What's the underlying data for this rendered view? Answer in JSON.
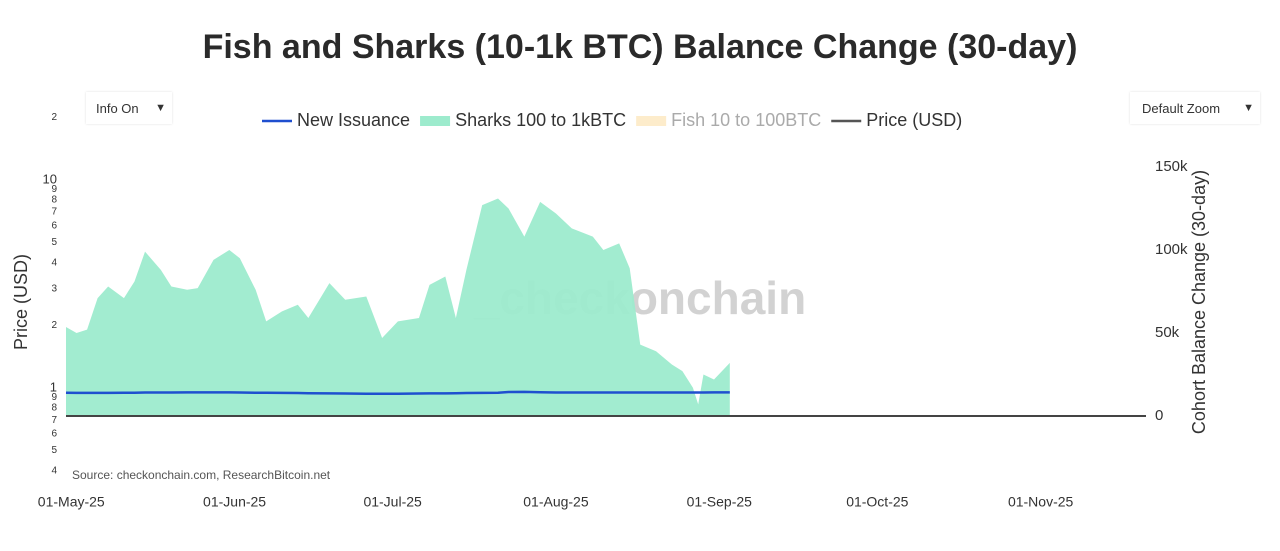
{
  "controls": {
    "info": "Info On",
    "zoom": "Default Zoom"
  },
  "chart_data": {
    "type": "area",
    "title": "Fish and Sharks (10-1k BTC) Balance Change (30-day)",
    "ylabel": "Price (USD)",
    "y2label": "Cohort Balance Change (30-day)",
    "source": "Source: checkonchain.com, ResearchBitcoin.net",
    "watermark": "_checkonchain",
    "log_y": true,
    "x": [
      "2025-04-30",
      "2025-05-02",
      "2025-05-04",
      "2025-05-06",
      "2025-05-08",
      "2025-05-11",
      "2025-05-13",
      "2025-05-15",
      "2025-05-18",
      "2025-05-20",
      "2025-05-23",
      "2025-05-25",
      "2025-05-28",
      "2025-05-31",
      "2025-06-02",
      "2025-06-05",
      "2025-06-07",
      "2025-06-10",
      "2025-06-13",
      "2025-06-15",
      "2025-06-19",
      "2025-06-22",
      "2025-06-26",
      "2025-06-29",
      "2025-07-02",
      "2025-07-06",
      "2025-07-08",
      "2025-07-11",
      "2025-07-13",
      "2025-07-15",
      "2025-07-18",
      "2025-07-21",
      "2025-07-23",
      "2025-07-26",
      "2025-07-29",
      "2025-08-01",
      "2025-08-04",
      "2025-08-08",
      "2025-08-10",
      "2025-08-13",
      "2025-08-15",
      "2025-08-17",
      "2025-08-20",
      "2025-08-23",
      "2025-08-25",
      "2025-08-27",
      "2025-08-28",
      "2025-08-29",
      "2025-08-31",
      "2025-09-03"
    ],
    "series": [
      {
        "name": "New Issuance",
        "color": "#1f4fcf",
        "axis": "y2",
        "style": "line",
        "values": [
          14000,
          13900,
          13900,
          13900,
          13900,
          14000,
          14000,
          14100,
          14100,
          14100,
          14200,
          14200,
          14200,
          14200,
          14100,
          14000,
          14000,
          13900,
          13800,
          13700,
          13600,
          13500,
          13400,
          13400,
          13400,
          13500,
          13600,
          13600,
          13700,
          13800,
          13900,
          14000,
          14400,
          14500,
          14300,
          14100,
          14100,
          14100,
          14100,
          14100,
          14100,
          14100,
          14100,
          14100,
          14100,
          14100,
          14100,
          14100,
          14200,
          14200
        ]
      },
      {
        "name": "Sharks 100 to 1kBTC",
        "color": "#9debcd",
        "axis": "y2",
        "style": "area",
        "values": [
          53600,
          50000,
          52000,
          71000,
          78000,
          71000,
          81000,
          99000,
          88000,
          78000,
          76000,
          77000,
          94000,
          100000,
          95000,
          76000,
          57000,
          63000,
          67000,
          59000,
          80000,
          70000,
          72000,
          47000,
          57000,
          59000,
          79000,
          84000,
          59000,
          88000,
          127000,
          131000,
          125000,
          108000,
          129000,
          122000,
          113000,
          108000,
          100000,
          104000,
          89000,
          43000,
          39000,
          31000,
          27000,
          17000,
          7000,
          25000,
          22000,
          32000
        ]
      },
      {
        "name": "Fish 10 to 100BTC",
        "color": "#fdeccb",
        "axis": "y2",
        "style": "area",
        "visible": false,
        "values": [
          null,
          null,
          null,
          null,
          null,
          null,
          null,
          null,
          null,
          null,
          null,
          null,
          null,
          null,
          null,
          null,
          null,
          null,
          null,
          null,
          null,
          null,
          null,
          null,
          null,
          null,
          null,
          null,
          null,
          null,
          null,
          null,
          null,
          null,
          null,
          null,
          null,
          null,
          null,
          null,
          null,
          null,
          null,
          null,
          null,
          null,
          null,
          null,
          null,
          null
        ]
      },
      {
        "name": "Price (USD)",
        "color": "#555555",
        "axis": "y",
        "style": "line",
        "values": [
          null,
          null,
          null,
          null,
          null,
          null,
          null,
          null,
          null,
          null,
          null,
          null,
          null,
          null,
          null,
          null,
          null,
          null,
          null,
          null,
          null,
          null,
          null,
          null,
          null,
          null,
          null,
          null,
          null,
          null,
          null,
          null,
          null,
          null,
          null,
          null,
          null,
          null,
          null,
          null,
          null,
          null,
          null,
          null,
          null,
          null,
          null,
          null,
          null,
          null
        ]
      }
    ],
    "xlim": [
      "2025-04-30",
      "2025-11-21"
    ],
    "xticks": [
      {
        "value": "2025-05-01",
        "label": "01-May-25"
      },
      {
        "value": "2025-06-01",
        "label": "01-Jun-25"
      },
      {
        "value": "2025-07-01",
        "label": "01-Jul-25"
      },
      {
        "value": "2025-08-01",
        "label": "01-Aug-25"
      },
      {
        "value": "2025-09-01",
        "label": "01-Sep-25"
      },
      {
        "value": "2025-10-01",
        "label": "01-Oct-25"
      },
      {
        "value": "2025-11-01",
        "label": "01-Nov-25"
      }
    ],
    "ylim": [
      0.323,
      20.5
    ],
    "yticks": [
      {
        "value": 0.4,
        "label": "4"
      },
      {
        "value": 0.5,
        "label": "5"
      },
      {
        "value": 0.6,
        "label": "6"
      },
      {
        "value": 0.7,
        "label": "7"
      },
      {
        "value": 0.8,
        "label": "8"
      },
      {
        "value": 0.9,
        "label": "9"
      },
      1,
      2,
      3,
      4,
      5,
      6,
      7,
      8,
      9,
      10,
      {
        "value": 20,
        "label": "2"
      }
    ],
    "y2lim": [
      -44600,
      181300
    ],
    "y2ticks": [
      0,
      {
        "value": 50000,
        "label": "50k"
      },
      {
        "value": 100000,
        "label": "100k"
      },
      {
        "value": 150000,
        "label": "150k"
      }
    ]
  }
}
